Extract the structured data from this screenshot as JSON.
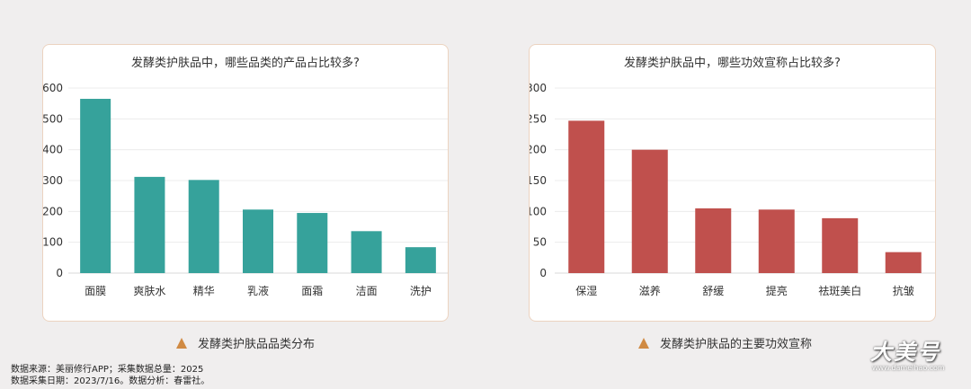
{
  "chart_data": [
    {
      "type": "bar",
      "title": "发酵类护肤品中，哪些品类的产品占比较多?",
      "categories": [
        "面膜",
        "爽肤水",
        "精华",
        "乳液",
        "面霜",
        "洁面",
        "洗护"
      ],
      "values": [
        565,
        312,
        302,
        206,
        195,
        136,
        84
      ],
      "ylim": [
        0,
        600
      ],
      "yticks": [
        0,
        100,
        200,
        300,
        400,
        500,
        600
      ],
      "color": "#36a29b",
      "caption": "发酵类护肤品品类分布"
    },
    {
      "type": "bar",
      "title": "发酵类护肤品中，哪些功效宣称占比较多?",
      "categories": [
        "保湿",
        "滋养",
        "舒缓",
        "提亮",
        "祛斑美白",
        "抗皱"
      ],
      "values": [
        247,
        200,
        105,
        103,
        89,
        34
      ],
      "ylim": [
        0,
        300
      ],
      "yticks": [
        0,
        50,
        100,
        150,
        200,
        250,
        300
      ],
      "color": "#c0504d",
      "caption": "发酵类护肤品的主要功效宣称"
    }
  ],
  "source": {
    "line1": "数据来源：美丽修行APP；采集数据总量：2025",
    "line2": "数据采集日期：2023/7/16。数据分析：春雷社。"
  },
  "watermark": {
    "text": "大美号",
    "url": "www.dameihao.com"
  },
  "colors": {
    "caption_marker": "#d08a43",
    "panel_border": "#ecd3c0"
  }
}
